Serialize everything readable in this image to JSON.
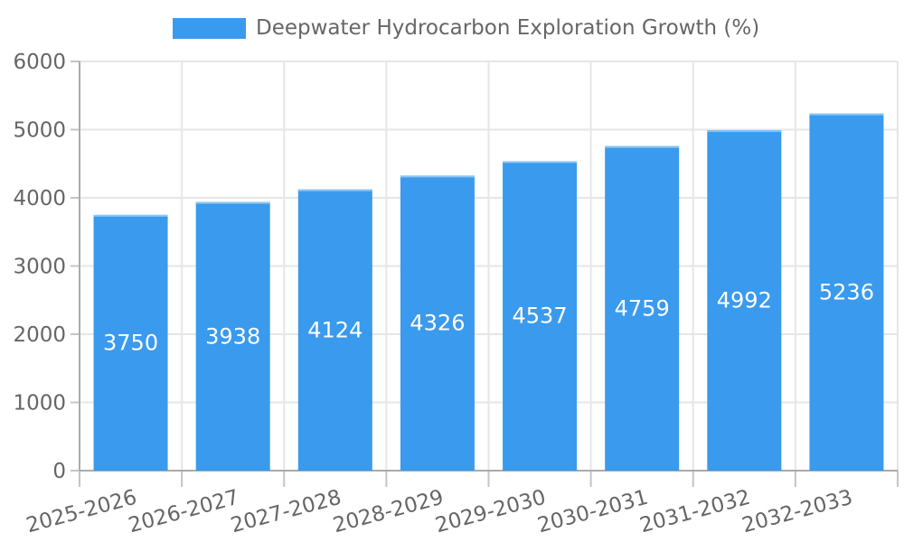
{
  "chart_data": {
    "type": "bar",
    "title": "Deepwater Hydrocarbon Exploration Growth (%)",
    "legend_position": "top",
    "categories": [
      "2025-2026",
      "2026-2027",
      "2027-2028",
      "2028-2029",
      "2029-2030",
      "2030-2031",
      "2031-2032",
      "2032-2033"
    ],
    "series": [
      {
        "name": "Deepwater Hydrocarbon Exploration Growth (%)",
        "values": [
          3750,
          3938,
          4124,
          4326,
          4537,
          4759,
          4992,
          5236
        ]
      }
    ],
    "bar_value_labels": [
      "3750",
      "3938",
      "4124",
      "4326",
      "4537",
      "4759",
      "4992",
      "5236"
    ],
    "xlabel": "",
    "ylabel": "",
    "ylim": [
      0,
      6000
    ],
    "ytick_step": 1000,
    "ytick_labels": [
      "0",
      "1000",
      "2000",
      "3000",
      "4000",
      "5000",
      "6000"
    ],
    "grid": true,
    "colors": {
      "bar": "#3A9AED",
      "bar_top_edge": "#8CC6F2",
      "bar_label_text": "#FFFFFF",
      "grid_line": "#E6E6E6",
      "tick_mark": "#C4C4C4",
      "axis_line": "#ABABAB",
      "tick_text": "#666666",
      "background": "#FFFFFF"
    }
  }
}
